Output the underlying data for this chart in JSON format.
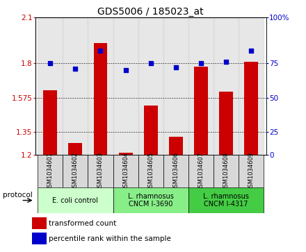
{
  "title": "GDS5006 / 185023_at",
  "samples": [
    "GSM1034601",
    "GSM1034602",
    "GSM1034603",
    "GSM1034604",
    "GSM1034605",
    "GSM1034606",
    "GSM1034607",
    "GSM1034608",
    "GSM1034609"
  ],
  "bar_values": [
    1.625,
    1.28,
    1.935,
    1.215,
    1.525,
    1.32,
    1.78,
    1.615,
    1.81
  ],
  "dot_values": [
    67,
    63,
    76,
    62,
    67,
    64,
    67,
    68,
    76
  ],
  "ymin": 1.2,
  "ymax": 2.1,
  "yticks_left": [
    1.2,
    1.35,
    1.575,
    1.8,
    2.1
  ],
  "ytick_labels_left": [
    "1.2",
    "1.35",
    "1.575",
    "1.8",
    "2.1"
  ],
  "yticks_right_vals": [
    1.2,
    1.35,
    1.575,
    1.8,
    2.1
  ],
  "ytick_labels_right": [
    "0",
    "25",
    "50",
    "75",
    "100%"
  ],
  "bar_color": "#cc0000",
  "dot_color": "#0000cc",
  "protocol_groups": [
    {
      "label": "E. coli control",
      "start": 0,
      "end": 2,
      "color": "#ccffcc"
    },
    {
      "label": "L. rhamnosus\nCNCM I-3690",
      "start": 3,
      "end": 5,
      "color": "#88ee88"
    },
    {
      "label": "L. rhamnosus\nCNCM I-4317",
      "start": 6,
      "end": 8,
      "color": "#44cc44"
    }
  ],
  "legend_bar_label": "transformed count",
  "legend_dot_label": "percentile rank within the sample",
  "protocol_label": "protocol",
  "title_fontsize": 10,
  "tick_fontsize": 7.5,
  "sample_fontsize": 6.0
}
